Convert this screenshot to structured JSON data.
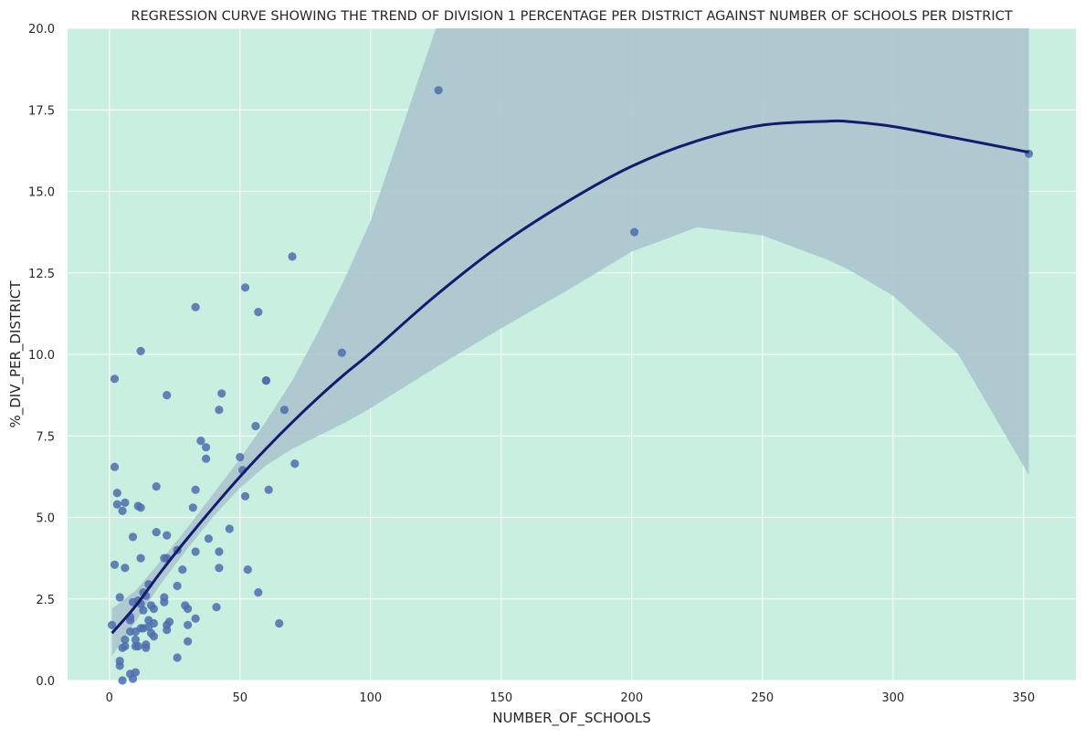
{
  "chart_data": {
    "type": "scatter",
    "title": "REGRESSION CURVE SHOWING THE TREND OF DIVISION 1 PERCENTAGE PER DISTRICT AGAINST NUMBER OF SCHOOLS PER DISTRICT",
    "xlabel": "NUMBER_OF_SCHOOLS",
    "ylabel": "%_DIV_PER_DISTRICT",
    "xlim": [
      -16,
      370
    ],
    "ylim": [
      0,
      20
    ],
    "x_ticks": [
      0,
      50,
      100,
      150,
      200,
      250,
      300,
      350
    ],
    "y_ticks": [
      0.0,
      2.5,
      5.0,
      7.5,
      10.0,
      12.5,
      15.0,
      17.5,
      20.0
    ],
    "x_tick_labels": [
      "0",
      "50",
      "100",
      "150",
      "200",
      "250",
      "300",
      "350"
    ],
    "y_tick_labels": [
      "0.0",
      "2.5",
      "5.0",
      "7.5",
      "10.0",
      "12.5",
      "15.0",
      "17.5",
      "20.0"
    ],
    "grid": true,
    "colors": {
      "background": "#c8efdf",
      "grid": "#ffffff",
      "points": "#4c6fae",
      "regression_line": "#151a6e",
      "confidence_band": "#a9c2cc"
    },
    "series": [
      {
        "points": [
          [
            1,
            1.7
          ],
          [
            2,
            9.25
          ],
          [
            2,
            6.55
          ],
          [
            2,
            3.55
          ],
          [
            3,
            5.75
          ],
          [
            3,
            5.4
          ],
          [
            4,
            2.55
          ],
          [
            4,
            0.6
          ],
          [
            4,
            0.45
          ],
          [
            5,
            5.2
          ],
          [
            5,
            1.0
          ],
          [
            5,
            0.0
          ],
          [
            6,
            5.45
          ],
          [
            6,
            3.45
          ],
          [
            6,
            1.25
          ],
          [
            6,
            1.05
          ],
          [
            8,
            1.95
          ],
          [
            8,
            1.85
          ],
          [
            8,
            1.5
          ],
          [
            8,
            0.2
          ],
          [
            9,
            4.4
          ],
          [
            9,
            2.4
          ],
          [
            9,
            0.05
          ],
          [
            10,
            1.5
          ],
          [
            10,
            1.25
          ],
          [
            10,
            1.05
          ],
          [
            10,
            0.25
          ],
          [
            11,
            5.35
          ],
          [
            11,
            2.45
          ],
          [
            11,
            1.05
          ],
          [
            12,
            10.1
          ],
          [
            12,
            5.3
          ],
          [
            12,
            3.75
          ],
          [
            12,
            2.35
          ],
          [
            12,
            1.6
          ],
          [
            13,
            2.7
          ],
          [
            13,
            2.15
          ],
          [
            13,
            1.6
          ],
          [
            14,
            2.6
          ],
          [
            14,
            1.1
          ],
          [
            14,
            1.0
          ],
          [
            15,
            2.95
          ],
          [
            15,
            1.85
          ],
          [
            15,
            1.65
          ],
          [
            16,
            2.3
          ],
          [
            16,
            1.45
          ],
          [
            17,
            2.2
          ],
          [
            17,
            1.75
          ],
          [
            17,
            1.35
          ],
          [
            18,
            5.95
          ],
          [
            18,
            4.55
          ],
          [
            21,
            3.75
          ],
          [
            21,
            2.55
          ],
          [
            21,
            2.4
          ],
          [
            22,
            8.75
          ],
          [
            22,
            4.45
          ],
          [
            22,
            3.75
          ],
          [
            22,
            1.7
          ],
          [
            22,
            1.55
          ],
          [
            23,
            1.8
          ],
          [
            26,
            4.0
          ],
          [
            26,
            2.9
          ],
          [
            26,
            0.7
          ],
          [
            28,
            3.4
          ],
          [
            29,
            2.3
          ],
          [
            30,
            2.2
          ],
          [
            30,
            1.7
          ],
          [
            30,
            1.2
          ],
          [
            32,
            5.3
          ],
          [
            33,
            11.45
          ],
          [
            33,
            5.85
          ],
          [
            33,
            3.95
          ],
          [
            33,
            1.9
          ],
          [
            35,
            7.35
          ],
          [
            37,
            7.15
          ],
          [
            37,
            6.8
          ],
          [
            38,
            4.35
          ],
          [
            41,
            2.25
          ],
          [
            42,
            8.3
          ],
          [
            42,
            3.95
          ],
          [
            42,
            3.45
          ],
          [
            43,
            8.8
          ],
          [
            46,
            4.65
          ],
          [
            50,
            6.85
          ],
          [
            51,
            6.45
          ],
          [
            52,
            12.05
          ],
          [
            52,
            5.65
          ],
          [
            53,
            3.4
          ],
          [
            56,
            7.8
          ],
          [
            57,
            11.3
          ],
          [
            57,
            2.7
          ],
          [
            60,
            9.2
          ],
          [
            60,
            9.2
          ],
          [
            61,
            5.85
          ],
          [
            65,
            1.75
          ],
          [
            67,
            8.3
          ],
          [
            70,
            13.0
          ],
          [
            71,
            6.65
          ],
          [
            89,
            10.05
          ],
          [
            126,
            18.1
          ],
          [
            201,
            13.75
          ],
          [
            352,
            16.15
          ]
        ]
      }
    ],
    "fit": {
      "order": 2,
      "x": [
        1,
        10,
        20,
        30,
        40,
        50,
        60,
        70,
        80,
        90,
        100,
        125,
        150,
        175,
        200,
        225,
        250,
        275,
        283,
        300,
        325,
        352
      ],
      "y": [
        1.45,
        2.28,
        3.36,
        4.37,
        5.33,
        6.25,
        7.11,
        7.92,
        8.68,
        9.39,
        10.05,
        11.81,
        13.37,
        14.67,
        15.77,
        16.55,
        17.03,
        17.15,
        17.14,
        16.99,
        16.62,
        16.2
      ],
      "ci_lower": [
        0.75,
        1.8,
        3.0,
        4.05,
        5.05,
        5.9,
        6.6,
        7.1,
        7.5,
        7.9,
        8.35,
        9.6,
        10.8,
        11.95,
        13.15,
        13.9,
        13.65,
        12.9,
        12.6,
        11.8,
        10.0,
        6.3
      ],
      "ci_upper": [
        2.2,
        2.75,
        3.7,
        4.7,
        5.75,
        6.8,
        7.95,
        9.2,
        10.7,
        12.3,
        14.1,
        20.0,
        20.0,
        20.0,
        20.0,
        20.0,
        20.0,
        20.0,
        20.0,
        20.0,
        20.0,
        20.0
      ]
    }
  }
}
